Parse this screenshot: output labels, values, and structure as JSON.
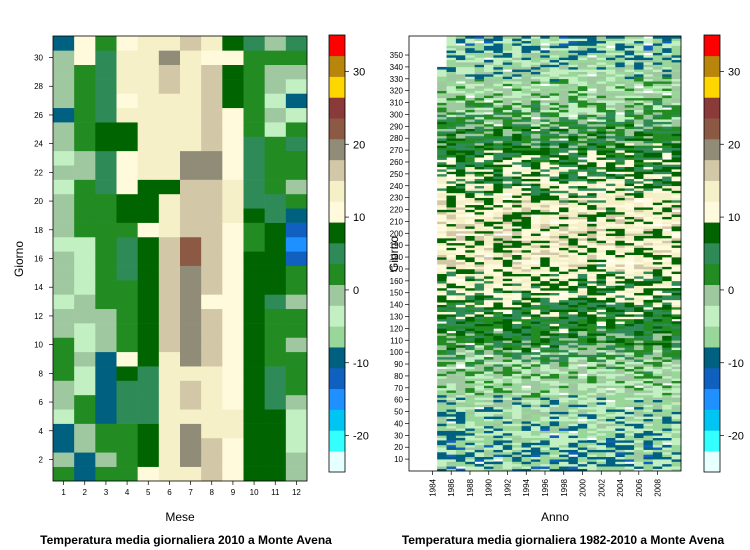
{
  "palette": [
    "#e6ffff",
    "#33ffff",
    "#00c4f2",
    "#1e90ff",
    "#1060c0",
    "#006080",
    "#99d699",
    "#c2f0c2",
    "#a0c8a0",
    "#228b22",
    "#2e8b57",
    "#006400",
    "#fffadc",
    "#f5f0c8",
    "#d2c8a8",
    "#908c78",
    "#8c5a44",
    "#8b3a3a",
    "#ffd700",
    "#b8860b",
    "#ff0000"
  ],
  "charts": [
    {
      "type": "heatmap",
      "title": "Temperatura media giornaliera 2010 a Monte Avena",
      "xlabel": "Mese",
      "ylabel": "Giorno",
      "x": [
        1,
        2,
        3,
        4,
        5,
        6,
        7,
        8,
        9,
        10,
        11,
        12
      ],
      "y_range": [
        1,
        31
      ],
      "y_ticks": [
        2,
        4,
        6,
        8,
        10,
        12,
        14,
        16,
        18,
        20,
        22,
        24,
        26,
        28,
        30
      ],
      "x_ticks": [
        "1",
        "2",
        "3",
        "4",
        "5",
        "6",
        "7",
        "8",
        "9",
        "10",
        "11",
        "12"
      ],
      "values_note": "rows = day 1..31, cols = month 1..12, palette index",
      "values": [
        [
          9,
          5,
          9,
          9,
          12,
          13,
          13,
          14,
          12,
          11,
          11,
          8
        ],
        [
          8,
          5,
          8,
          9,
          11,
          13,
          15,
          14,
          12,
          11,
          11,
          8
        ],
        [
          5,
          8,
          9,
          9,
          11,
          13,
          15,
          14,
          12,
          11,
          11,
          7
        ],
        [
          5,
          8,
          9,
          9,
          11,
          13,
          15,
          13,
          13,
          11,
          11,
          7
        ],
        [
          7,
          9,
          5,
          10,
          10,
          13,
          13,
          13,
          13,
          11,
          11,
          7
        ],
        [
          8,
          9,
          5,
          10,
          10,
          13,
          14,
          13,
          12,
          11,
          10,
          8
        ],
        [
          8,
          7,
          5,
          10,
          10,
          13,
          14,
          13,
          12,
          11,
          10,
          9
        ],
        [
          9,
          7,
          5,
          11,
          10,
          13,
          13,
          13,
          12,
          11,
          10,
          9
        ],
        [
          9,
          8,
          5,
          12,
          11,
          13,
          15,
          14,
          12,
          11,
          9,
          9
        ],
        [
          9,
          7,
          8,
          9,
          11,
          14,
          15,
          14,
          12,
          11,
          9,
          8
        ],
        [
          8,
          7,
          8,
          9,
          11,
          14,
          15,
          14,
          12,
          11,
          9,
          9
        ],
        [
          8,
          8,
          8,
          9,
          11,
          14,
          15,
          14,
          12,
          11,
          9,
          9
        ],
        [
          7,
          8,
          9,
          9,
          11,
          14,
          15,
          12,
          12,
          11,
          10,
          8
        ],
        [
          8,
          7,
          9,
          9,
          11,
          14,
          15,
          14,
          12,
          11,
          11,
          9
        ],
        [
          8,
          7,
          9,
          10,
          11,
          14,
          15,
          14,
          12,
          11,
          11,
          9
        ],
        [
          8,
          7,
          9,
          10,
          11,
          14,
          16,
          14,
          12,
          11,
          11,
          4
        ],
        [
          7,
          7,
          9,
          10,
          11,
          14,
          16,
          14,
          12,
          9,
          11,
          3
        ],
        [
          8,
          9,
          9,
          9,
          12,
          13,
          14,
          14,
          12,
          9,
          11,
          4
        ],
        [
          8,
          9,
          9,
          11,
          11,
          13,
          14,
          14,
          13,
          11,
          10,
          5
        ],
        [
          8,
          9,
          9,
          11,
          11,
          13,
          14,
          14,
          13,
          10,
          10,
          9
        ],
        [
          7,
          9,
          10,
          12,
          11,
          11,
          14,
          14,
          13,
          10,
          9,
          8
        ],
        [
          8,
          8,
          10,
          12,
          13,
          13,
          15,
          15,
          12,
          10,
          9,
          9
        ],
        [
          7,
          8,
          10,
          12,
          13,
          13,
          15,
          15,
          12,
          10,
          9,
          9
        ],
        [
          8,
          9,
          11,
          11,
          13,
          13,
          13,
          14,
          12,
          10,
          9,
          10
        ],
        [
          8,
          9,
          11,
          11,
          13,
          13,
          13,
          14,
          12,
          9,
          7,
          9
        ],
        [
          5,
          9,
          10,
          13,
          13,
          13,
          13,
          14,
          12,
          9,
          8,
          7
        ],
        [
          8,
          9,
          10,
          12,
          13,
          13,
          13,
          14,
          11,
          9,
          7,
          5
        ],
        [
          8,
          9,
          10,
          13,
          13,
          14,
          13,
          14,
          11,
          9,
          8,
          7
        ],
        [
          8,
          9,
          10,
          13,
          13,
          14,
          13,
          14,
          11,
          9,
          8,
          8
        ],
        [
          8,
          12,
          10,
          13,
          13,
          15,
          13,
          12,
          12,
          9,
          9,
          9
        ],
        [
          5,
          12,
          9,
          12,
          13,
          13,
          14,
          13,
          11,
          10,
          8,
          10
        ]
      ],
      "legend_ticks": [
        "-20",
        "-10",
        "0",
        "10",
        "20",
        "30"
      ]
    },
    {
      "type": "heatmap",
      "title": "Temperatura media giornaliera 1982-2010 a Monte Avena",
      "xlabel": "Anno",
      "ylabel": "Giorno",
      "x_range": [
        1982,
        2010
      ],
      "x_ticks": [
        "1984",
        "1986",
        "1988",
        "1990",
        "1992",
        "1994",
        "1996",
        "1998",
        "2000",
        "2002",
        "2004",
        "2006",
        "2008"
      ],
      "y_range": [
        1,
        366
      ],
      "y_ticks": [
        "10",
        "20",
        "30",
        "40",
        "50",
        "60",
        "70",
        "80",
        "90",
        "100",
        "110",
        "120",
        "130",
        "140",
        "150",
        "160",
        "170",
        "180",
        "190",
        "200",
        "210",
        "220",
        "230",
        "240",
        "250",
        "260",
        "270",
        "280",
        "290",
        "300",
        "310",
        "320",
        "330",
        "340",
        "350"
      ],
      "legend_ticks": [
        "-20",
        "-10",
        "0",
        "10",
        "20",
        "30"
      ]
    }
  ]
}
